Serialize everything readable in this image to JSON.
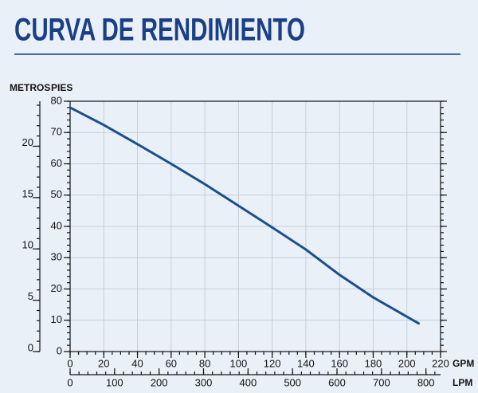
{
  "chart_data": {
    "type": "line",
    "title": "CURVA DE RENDIMIENTO",
    "y_label": "PIES",
    "y2_label": "METROS",
    "x_label": "GPM",
    "x2_label": "LPM",
    "x": [
      0,
      20,
      40,
      60,
      80,
      100,
      120,
      140,
      160,
      180,
      207
    ],
    "values": [
      78,
      72.4,
      66.3,
      60,
      53.5,
      46.6,
      39.7,
      32.6,
      24.5,
      17.3,
      9
    ],
    "color": "#1b4f8c",
    "xlim": [
      0,
      220
    ],
    "xticks": [
      0,
      20,
      40,
      60,
      80,
      100,
      120,
      140,
      160,
      180,
      200,
      220
    ],
    "x2lim": [
      0,
      832.8
    ],
    "x2ticks": [
      0,
      100,
      200,
      300,
      400,
      500,
      600,
      700,
      800
    ],
    "ylim": [
      0,
      80
    ],
    "yticks": [
      0,
      10,
      20,
      30,
      40,
      50,
      60,
      70,
      80
    ],
    "y2lim": [
      0,
      24.384
    ],
    "y2ticks": [
      0,
      5,
      10,
      15,
      20
    ],
    "grid": true
  }
}
